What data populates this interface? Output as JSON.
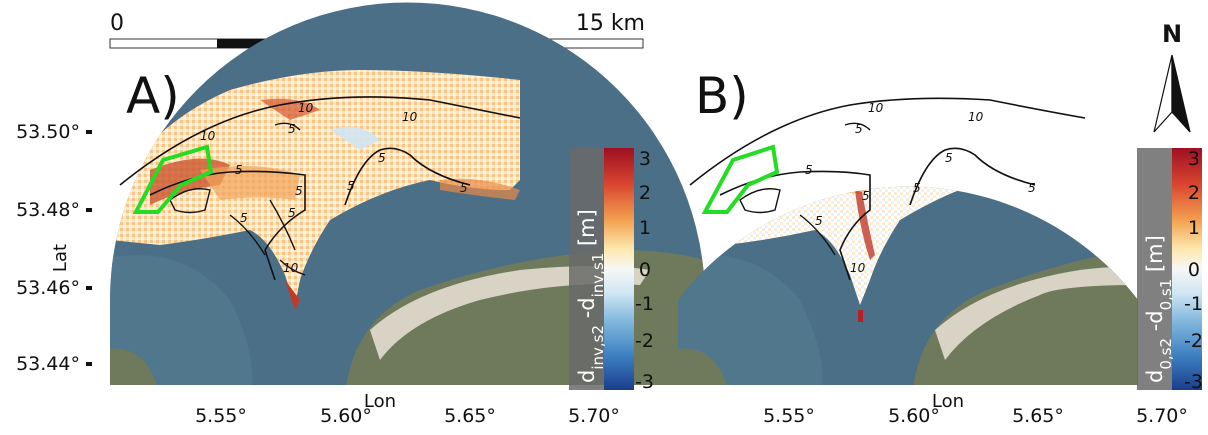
{
  "scalebar": {
    "start_label": "0",
    "end_label": "15 km"
  },
  "north_arrow": {
    "label": "N"
  },
  "axes": {
    "ylabel": "Lat",
    "xlabel": "Lon",
    "yticks": [
      "53.50°",
      "53.48°",
      "53.46°",
      "53.44°"
    ],
    "xticks": [
      "5.55°",
      "5.60°",
      "5.65°",
      "5.70°"
    ]
  },
  "panels": [
    {
      "label": "A)",
      "colorbar_label_html": "d<tspan baseline-shift='sub' font-size='15'>inv,s2</tspan> -d<tspan baseline-shift='sub' font-size='15'>inv,s1</tspan> [m]",
      "colorbar_label_text": "dinv,s2 -dinv,s1 [m]",
      "contour_labels": [
        "10",
        "10",
        "5",
        "10",
        "5",
        "5",
        "5",
        "5",
        "5",
        "5",
        "5",
        "10"
      ]
    },
    {
      "label": "B)",
      "colorbar_label_text": "d0,s2 -d0,s1 [m]",
      "contour_labels": [
        "10",
        "10",
        "5",
        "5",
        "5",
        "5",
        "5",
        "5",
        "5",
        "10"
      ]
    }
  ],
  "colorbar": {
    "ticks": [
      "3",
      "2",
      "1",
      "0",
      "-1",
      "-2",
      "-3"
    ],
    "range": [
      -3,
      3
    ],
    "colors": [
      "#b2182b",
      "#ef8a62",
      "#fddbc7",
      "#f7f7f7",
      "#d1e5f0",
      "#67a9cf",
      "#2166ac"
    ]
  },
  "colors": {
    "sea": "#4b6f86",
    "land": "#6f7a5c",
    "sand": "#d8d3c4",
    "mask": "#ffffff",
    "aoi": "#22dd22"
  }
}
